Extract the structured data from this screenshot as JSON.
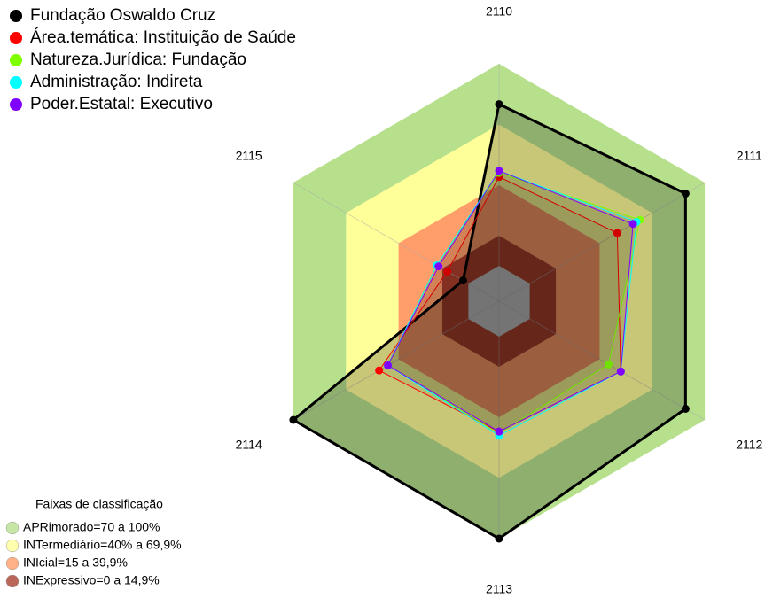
{
  "chart_data": {
    "type": "radar",
    "categories": [
      "2110",
      "2111",
      "2112",
      "2113",
      "2114",
      "2115"
    ],
    "rlim": [
      0,
      100
    ],
    "series": [
      {
        "name": "Fundação Oswaldo Cruz",
        "color": "#000000",
        "values": [
          80,
          89,
          89,
          100,
          100,
          3
        ]
      },
      {
        "name": "Área.temática: Instituição de Saúde",
        "color": "#ff0000",
        "values": [
          44,
          50,
          52,
          47,
          51,
          12
        ]
      },
      {
        "name": "Natureza.Jurídica: Fundação",
        "color": "#80ff00",
        "values": [
          46,
          63,
          45,
          48,
          46,
          18
        ]
      },
      {
        "name": "Administração: Indireta",
        "color": "#00ffff",
        "values": [
          47,
          61,
          52,
          49,
          46,
          18
        ]
      },
      {
        "name": "Poder.Estatal: Executivo",
        "color": "#8000ff",
        "values": [
          47,
          59,
          52,
          47,
          46,
          17
        ]
      }
    ],
    "bands_title": "Faixas de classificação",
    "bands": [
      {
        "label": "APRimorado=70 a 100%",
        "color": "#b7e08d",
        "from": 70,
        "to": 100
      },
      {
        "label": "INTermediário=40% a 69,9%",
        "color": "#ffff99",
        "from": 40,
        "to": 69.9
      },
      {
        "label": "INIcial=15 a 39,9%",
        "color": "#ff9e6a",
        "from": 15,
        "to": 39.9
      },
      {
        "label": "INExpressivo=0 a 14,9%",
        "color": "#a9402e",
        "from": 0,
        "to": 14.9
      }
    ]
  }
}
